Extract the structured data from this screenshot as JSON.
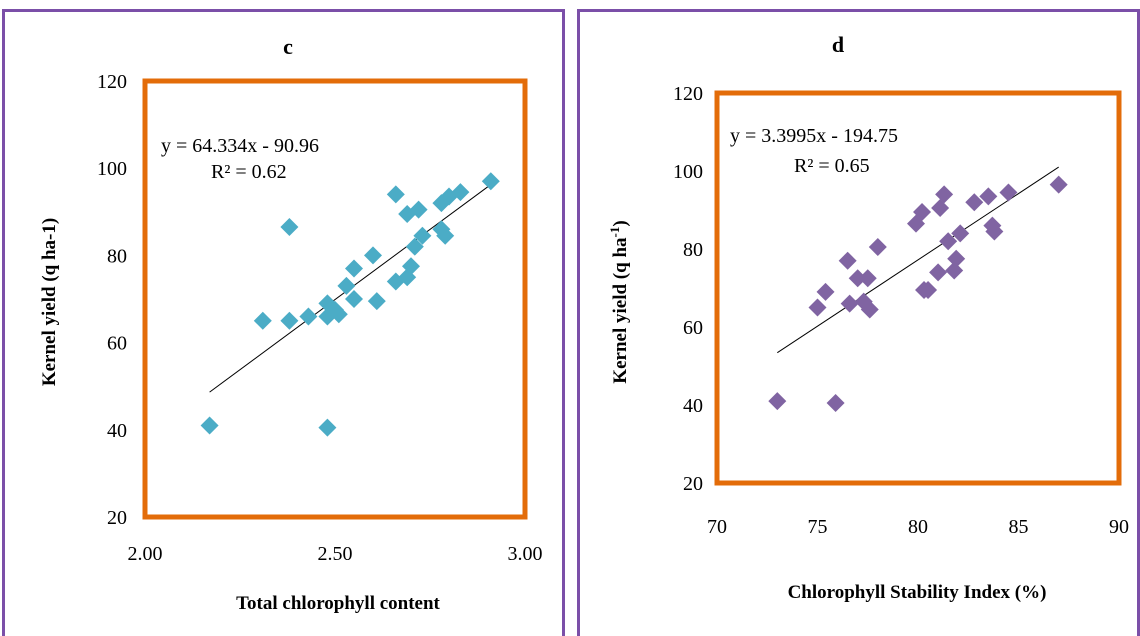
{
  "chart_data": [
    {
      "type": "scatter",
      "title": "c",
      "xlabel": "Total chlorophyll content",
      "ylabel": "Kernel yield (q ha-1)",
      "xlim": [
        2.0,
        3.0
      ],
      "ylim": [
        20,
        120
      ],
      "x_ticks": [
        "2.00",
        "2.50",
        "3.00"
      ],
      "y_ticks": [
        "20",
        "40",
        "60",
        "80",
        "100",
        "120"
      ],
      "x_tick_values": [
        2.0,
        2.5,
        3.0
      ],
      "y_tick_values": [
        20,
        40,
        60,
        80,
        100,
        120
      ],
      "marker_color": "#4bacc6",
      "frame_color": "#e36c09",
      "equation": "y = 64.334x - 90.96",
      "r2_label": "R² = 0.62",
      "trendline": {
        "slope": 64.334,
        "intercept": -90.96,
        "x_range": [
          2.17,
          2.91
        ]
      },
      "points": [
        [
          2.17,
          41
        ],
        [
          2.31,
          65
        ],
        [
          2.38,
          65
        ],
        [
          2.38,
          86.5
        ],
        [
          2.43,
          66
        ],
        [
          2.48,
          69
        ],
        [
          2.48,
          66
        ],
        [
          2.48,
          40.5
        ],
        [
          2.5,
          67.5
        ],
        [
          2.51,
          66.5
        ],
        [
          2.53,
          73
        ],
        [
          2.55,
          77
        ],
        [
          2.55,
          70
        ],
        [
          2.6,
          80
        ],
        [
          2.61,
          69.5
        ],
        [
          2.66,
          74
        ],
        [
          2.66,
          94
        ],
        [
          2.69,
          75
        ],
        [
          2.69,
          89.5
        ],
        [
          2.7,
          77.5
        ],
        [
          2.71,
          82
        ],
        [
          2.72,
          90.5
        ],
        [
          2.73,
          84.5
        ],
        [
          2.78,
          92
        ],
        [
          2.78,
          86
        ],
        [
          2.79,
          84.5
        ],
        [
          2.8,
          93.5
        ],
        [
          2.83,
          94.5
        ],
        [
          2.91,
          97
        ]
      ]
    },
    {
      "type": "scatter",
      "title": "d",
      "xlabel": "Chlorophyll Stability Index (%)",
      "ylabel": "Kernel yield (q ha",
      "ylabel_sup": "-1",
      "ylabel_end": ")",
      "xlim": [
        70,
        90
      ],
      "ylim": [
        20,
        120
      ],
      "x_ticks": [
        "70",
        "75",
        "80",
        "85",
        "90"
      ],
      "y_ticks": [
        "20",
        "40",
        "60",
        "80",
        "100",
        "120"
      ],
      "x_tick_values": [
        70,
        75,
        80,
        85,
        90
      ],
      "y_tick_values": [
        20,
        40,
        60,
        80,
        100,
        120
      ],
      "marker_color": "#8064a2",
      "frame_color": "#e36c09",
      "equation": "y = 3.3995x - 194.75",
      "r2_label": "R² = 0.65",
      "trendline": {
        "slope": 3.3995,
        "intercept": -194.75,
        "x_range": [
          73,
          87
        ]
      },
      "points": [
        [
          73.0,
          41
        ],
        [
          75.0,
          65
        ],
        [
          75.4,
          69
        ],
        [
          75.9,
          40.5
        ],
        [
          76.5,
          77
        ],
        [
          76.6,
          66
        ],
        [
          77.0,
          72.5
        ],
        [
          77.3,
          66.5
        ],
        [
          77.5,
          72.5
        ],
        [
          77.6,
          64.5
        ],
        [
          78.0,
          80.5
        ],
        [
          79.9,
          86.5
        ],
        [
          80.2,
          89.5
        ],
        [
          80.3,
          69.5
        ],
        [
          80.5,
          69.5
        ],
        [
          81.0,
          74
        ],
        [
          81.1,
          90.5
        ],
        [
          81.3,
          94
        ],
        [
          81.5,
          82
        ],
        [
          81.8,
          74.5
        ],
        [
          81.9,
          77.5
        ],
        [
          82.1,
          84
        ],
        [
          82.8,
          92
        ],
        [
          83.5,
          93.5
        ],
        [
          83.7,
          86
        ],
        [
          83.8,
          84.5
        ],
        [
          84.5,
          94.5
        ],
        [
          87.0,
          96.5
        ]
      ]
    }
  ]
}
